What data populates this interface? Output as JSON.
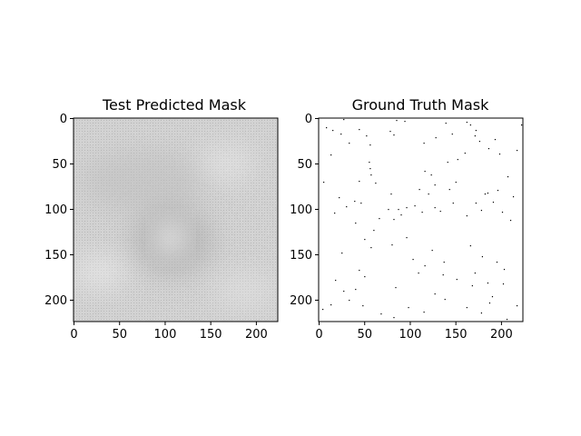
{
  "chart_data": [
    {
      "type": "heatmap",
      "title": "Test Predicted Mask",
      "xlabel": "",
      "ylabel": "",
      "xlim": [
        0,
        224
      ],
      "ylim": [
        224,
        0
      ],
      "xticks": [
        0,
        50,
        100,
        150,
        200
      ],
      "yticks": [
        0,
        50,
        100,
        150,
        200
      ],
      "colormap": "gray",
      "description_values": {
        "background_level": 0.82,
        "dark_blob_center": [
          110,
          135
        ],
        "dark_blob_radius": 40
      }
    },
    {
      "type": "heatmap",
      "title": "Ground Truth Mask",
      "xlabel": "",
      "ylabel": "",
      "xlim": [
        0,
        224
      ],
      "ylim": [
        224,
        0
      ],
      "xticks": [
        0,
        50,
        100,
        150,
        200
      ],
      "yticks": [
        0,
        50,
        100,
        150,
        200
      ],
      "colormap": "gray",
      "sparse_points": [
        [
          27,
          1
        ],
        [
          85,
          2
        ],
        [
          94,
          3
        ],
        [
          139,
          5
        ],
        [
          162,
          4
        ],
        [
          166,
          7
        ],
        [
          172,
          13
        ],
        [
          222,
          7
        ],
        [
          8,
          10
        ],
        [
          15,
          13
        ],
        [
          24,
          17
        ],
        [
          44,
          12
        ],
        [
          52,
          19
        ],
        [
          78,
          14
        ],
        [
          82,
          18
        ],
        [
          128,
          21
        ],
        [
          146,
          17
        ],
        [
          171,
          19
        ],
        [
          193,
          23
        ],
        [
          13,
          40
        ],
        [
          33,
          27
        ],
        [
          56,
          29
        ],
        [
          115,
          27
        ],
        [
          152,
          45
        ],
        [
          160,
          38
        ],
        [
          176,
          25
        ],
        [
          186,
          33
        ],
        [
          198,
          39
        ],
        [
          217,
          35
        ],
        [
          5,
          70
        ],
        [
          55,
          48
        ],
        [
          56,
          55
        ],
        [
          57,
          62
        ],
        [
          44,
          69
        ],
        [
          62,
          71
        ],
        [
          116,
          58
        ],
        [
          123,
          62
        ],
        [
          141,
          48
        ],
        [
          207,
          64
        ],
        [
          182,
          83
        ],
        [
          22,
          87
        ],
        [
          30,
          97
        ],
        [
          39,
          91
        ],
        [
          46,
          93
        ],
        [
          79,
          83
        ],
        [
          87,
          100
        ],
        [
          105,
          96
        ],
        [
          110,
          78
        ],
        [
          120,
          83
        ],
        [
          127,
          73
        ],
        [
          143,
          78
        ],
        [
          150,
          70
        ],
        [
          185,
          82
        ],
        [
          196,
          79
        ],
        [
          213,
          86
        ],
        [
          17,
          104
        ],
        [
          40,
          115
        ],
        [
          50,
          133
        ],
        [
          60,
          123
        ],
        [
          66,
          110
        ],
        [
          76,
          100
        ],
        [
          82,
          111
        ],
        [
          90,
          106
        ],
        [
          96,
          98
        ],
        [
          113,
          103
        ],
        [
          127,
          98
        ],
        [
          133,
          102
        ],
        [
          147,
          93
        ],
        [
          162,
          107
        ],
        [
          172,
          93
        ],
        [
          178,
          101
        ],
        [
          191,
          92
        ],
        [
          201,
          103
        ],
        [
          210,
          112
        ],
        [
          25,
          148
        ],
        [
          44,
          167
        ],
        [
          57,
          142
        ],
        [
          80,
          139
        ],
        [
          96,
          131
        ],
        [
          103,
          155
        ],
        [
          116,
          162
        ],
        [
          124,
          145
        ],
        [
          137,
          158
        ],
        [
          166,
          140
        ],
        [
          171,
          170
        ],
        [
          179,
          152
        ],
        [
          195,
          158
        ],
        [
          203,
          166
        ],
        [
          18,
          178
        ],
        [
          27,
          190
        ],
        [
          40,
          188
        ],
        [
          50,
          174
        ],
        [
          84,
          186
        ],
        [
          109,
          170
        ],
        [
          136,
          172
        ],
        [
          151,
          177
        ],
        [
          168,
          184
        ],
        [
          185,
          181
        ],
        [
          190,
          196
        ],
        [
          202,
          182
        ],
        [
          4,
          210
        ],
        [
          13,
          205
        ],
        [
          33,
          200
        ],
        [
          48,
          206
        ],
        [
          68,
          215
        ],
        [
          82,
          219
        ],
        [
          98,
          208
        ],
        [
          115,
          213
        ],
        [
          127,
          193
        ],
        [
          138,
          199
        ],
        [
          162,
          208
        ],
        [
          178,
          214
        ],
        [
          187,
          203
        ],
        [
          206,
          221
        ],
        [
          217,
          206
        ]
      ]
    }
  ]
}
